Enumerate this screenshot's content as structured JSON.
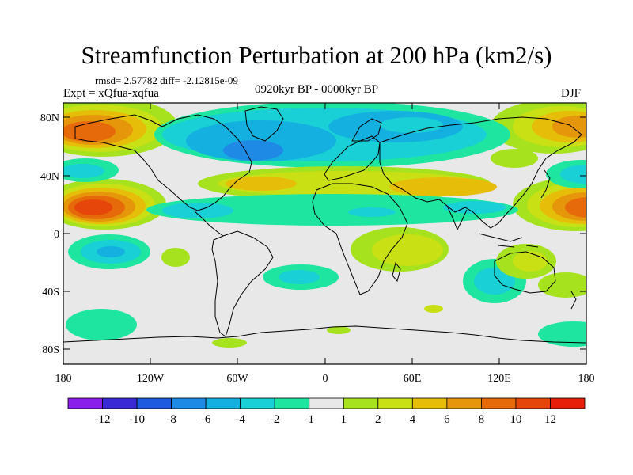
{
  "title": "Streamfunction Perturbation at 200 hPa (km2/s)",
  "stats": "rmsd= 2.57782 diff= -2.12815e-09",
  "expt": "Expt = xQfua-xqfua",
  "period": "0920kyr BP - 0000kyr BP",
  "season": "DJF",
  "lat_labels": [
    "80N",
    "40N",
    "0",
    "40S",
    "80S"
  ],
  "lon_labels": [
    "180",
    "120W",
    "60W",
    "0",
    "60E",
    "120E",
    "180"
  ],
  "colorbar": {
    "labels": [
      "-12",
      "-10",
      "-8",
      "-6",
      "-4",
      "-2",
      "-1",
      "1",
      "2",
      "4",
      "6",
      "8",
      "10",
      "12"
    ],
    "colors": [
      "#8a1eea",
      "#3a2ad6",
      "#1e5ae0",
      "#1e8ae6",
      "#14b0e0",
      "#18d0d6",
      "#1ee6a0",
      "#e8e8e8",
      "#a6e21e",
      "#c8e014",
      "#e6be0a",
      "#e6960a",
      "#e66a0a",
      "#e6460a",
      "#e61e0a"
    ]
  },
  "colors": {
    "background": "#e8e8e8",
    "coast": "#000000"
  }
}
